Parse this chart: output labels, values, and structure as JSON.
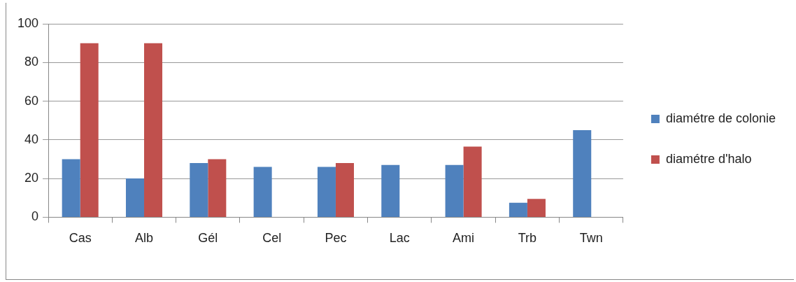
{
  "chart_data": {
    "type": "bar",
    "categories": [
      "Cas",
      "Alb",
      "Gél",
      "Cel",
      "Pec",
      "Lac",
      "Ami",
      "Trb",
      "Twn"
    ],
    "series": [
      {
        "name": "diamétre de colonie",
        "color": "#4f81bd",
        "values": [
          30,
          20,
          28,
          26,
          26,
          27,
          27,
          7.5,
          45
        ]
      },
      {
        "name": "diamétre d'halo",
        "color": "#c0504d",
        "values": [
          90,
          90,
          30,
          null,
          28,
          null,
          36.5,
          9.5,
          null
        ]
      }
    ],
    "ylim": [
      0,
      100
    ],
    "yticks": [
      0,
      20,
      40,
      60,
      80,
      100
    ],
    "grid": "y",
    "legend": "right"
  }
}
